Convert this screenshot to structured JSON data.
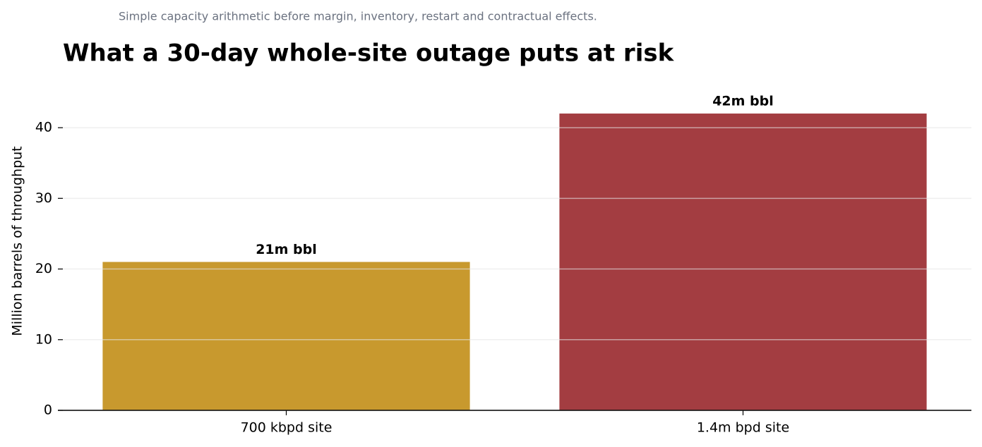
{
  "chart_data": {
    "type": "bar",
    "title": "What a 30-day whole-site outage puts at risk",
    "subtitle": "Simple capacity arithmetic before margin, inventory, restart and contractual effects.",
    "y_label": "Million barrels of throughput",
    "categories": [
      "700 kbpd site",
      "1.4m bpd site"
    ],
    "values": [
      21,
      42
    ],
    "value_labels": [
      "21m bbl",
      "42m bbl"
    ],
    "colors": [
      "#c8992e",
      "#a33d41"
    ],
    "ylim": [
      0,
      44.1
    ],
    "yticks": [
      0,
      10,
      20,
      30,
      40
    ],
    "grid": true
  }
}
